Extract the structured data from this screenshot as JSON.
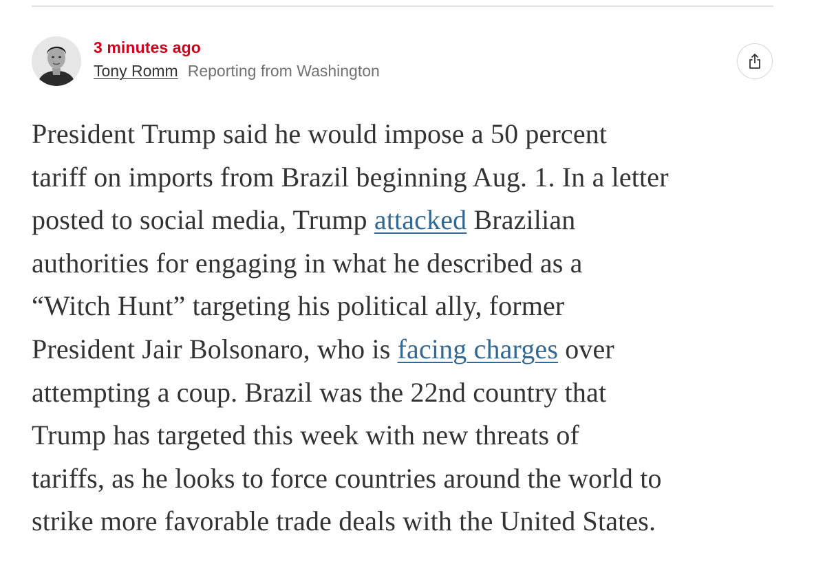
{
  "post": {
    "timestamp": "3 minutes ago",
    "author": "Tony Romm",
    "dateline": "Reporting from Washington",
    "share_icon": "share-icon",
    "avatar_icon": "author-avatar"
  },
  "body": {
    "l1": "President Trump said he would impose a 50 percent",
    "l2": "tariff on imports from Brazil beginning Aug. 1. In a letter",
    "l3_pre": "posted to social media, Trump ",
    "l3_link": "attacked",
    "l3_post": " Brazilian",
    "l4": "authorities for engaging in what he described as a",
    "l5": "“Witch Hunt” targeting his political ally, former",
    "l6_pre": "President Jair Bolsonaro, who is ",
    "l6_link": "facing charges",
    "l6_post": " over",
    "l7": "attempting a coup. Brazil was the 22nd country that",
    "l8": "Trump has targeted this week with new threats of",
    "l9": "tariffs, as he looks to force countries around the world to",
    "l10": "strike more favorable trade deals with the United States."
  },
  "colors": {
    "timestamp": "#d0021b",
    "link": "#326891",
    "text": "#333333",
    "dateline": "#727272"
  }
}
